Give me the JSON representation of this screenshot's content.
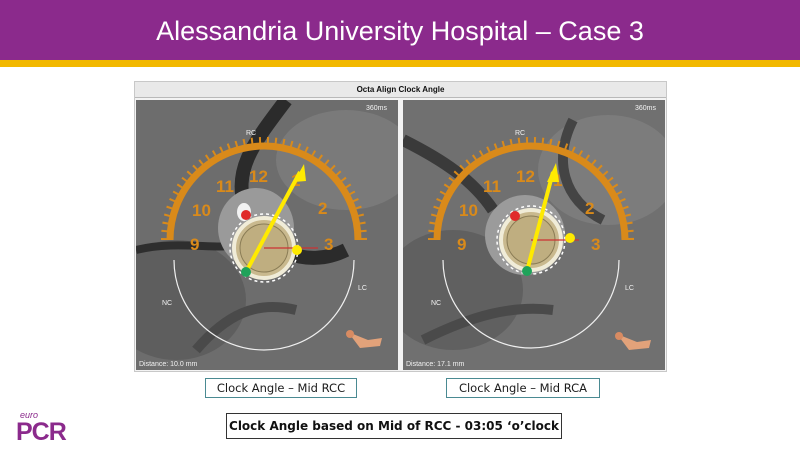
{
  "slide": {
    "title": "Alessandria University Hospital – Case 3",
    "colors": {
      "header": "#8b2a8c",
      "accent": "#f2b800",
      "ring": "#d98a1a",
      "arrow": "#ffea00"
    }
  },
  "viewer": {
    "title": "Octa Align Clock Angle",
    "panels": [
      {
        "time": "360ms",
        "distance": "Distance: 10.0 mm",
        "caption": "Clock Angle – Mid RCC",
        "labels": {
          "top": "RC",
          "left": "NC",
          "right": "LC"
        },
        "hours": [
          "9",
          "10",
          "11",
          "12",
          "1",
          "2",
          "3"
        ]
      },
      {
        "time": "360ms",
        "distance": "Distance: 17.1 mm",
        "caption": "Clock Angle – Mid RCA",
        "labels": {
          "top": "RC",
          "left": "NC",
          "right": "LC"
        },
        "hours": [
          "9",
          "10",
          "11",
          "12",
          "1",
          "2",
          "3"
        ]
      }
    ]
  },
  "summary": "Clock Angle based on Mid of RCC  - 03:05 ‘o’clock",
  "logo": {
    "small": "euro",
    "big": "PCR"
  }
}
